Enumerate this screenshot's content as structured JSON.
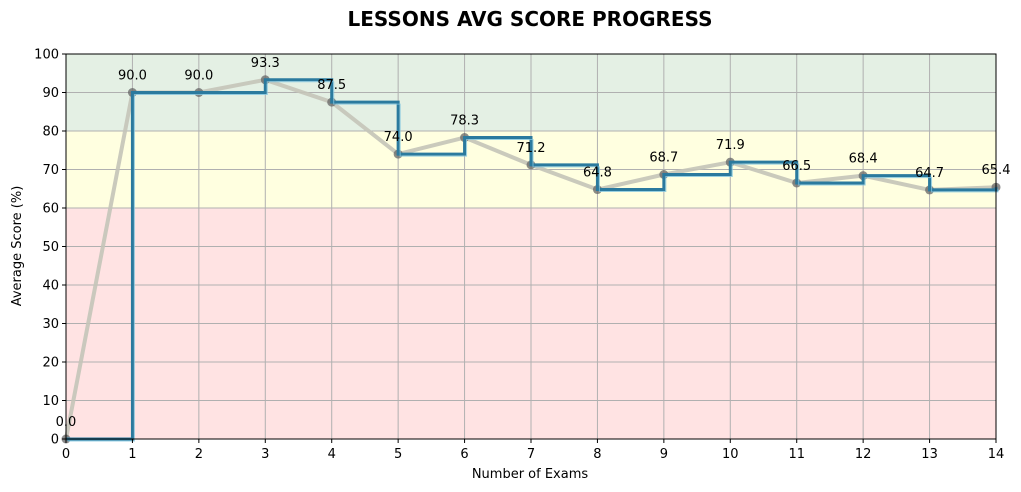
{
  "chart_data": {
    "type": "line",
    "title": "LESSONS AVG SCORE PROGRESS",
    "xlabel": "Number of Exams",
    "ylabel": "Average Score (%)",
    "xlim": [
      0,
      14
    ],
    "ylim": [
      0,
      100
    ],
    "x_ticks": [
      "0",
      "1",
      "2",
      "3",
      "4",
      "5",
      "6",
      "7",
      "8",
      "9",
      "10",
      "11",
      "12",
      "13",
      "14"
    ],
    "y_ticks": [
      "0",
      "10",
      "20",
      "30",
      "40",
      "50",
      "60",
      "70",
      "80",
      "90",
      "100"
    ],
    "grid": true,
    "bands": [
      {
        "from": 0,
        "to": 60,
        "color": "#ffe3e3"
      },
      {
        "from": 60,
        "to": 80,
        "color": "#ffffe0"
      },
      {
        "from": 80,
        "to": 100,
        "color": "#e4f0e4"
      }
    ],
    "x": [
      0,
      1,
      2,
      3,
      4,
      5,
      6,
      7,
      8,
      9,
      10,
      11,
      12,
      13,
      14
    ],
    "series": [
      {
        "style": "line",
        "color": "#c4c4b8",
        "marker_color": "#666666",
        "values": [
          0.0,
          90.0,
          90.0,
          93.3,
          87.5,
          74.0,
          78.3,
          71.2,
          64.8,
          68.7,
          71.9,
          66.5,
          68.4,
          64.7,
          65.4
        ]
      },
      {
        "style": "step",
        "color": "#2b7a9e",
        "values": [
          0.0,
          90.0,
          90.0,
          93.3,
          87.5,
          74.0,
          78.3,
          71.2,
          64.8,
          68.7,
          71.9,
          66.5,
          68.4,
          64.7,
          65.4
        ]
      }
    ],
    "data_labels": [
      "0.0",
      "90.0",
      "90.0",
      "93.3",
      "87.5",
      "74.0",
      "78.3",
      "71.2",
      "64.8",
      "68.7",
      "71.9",
      "66.5",
      "68.4",
      "64.7",
      "65.4"
    ]
  }
}
